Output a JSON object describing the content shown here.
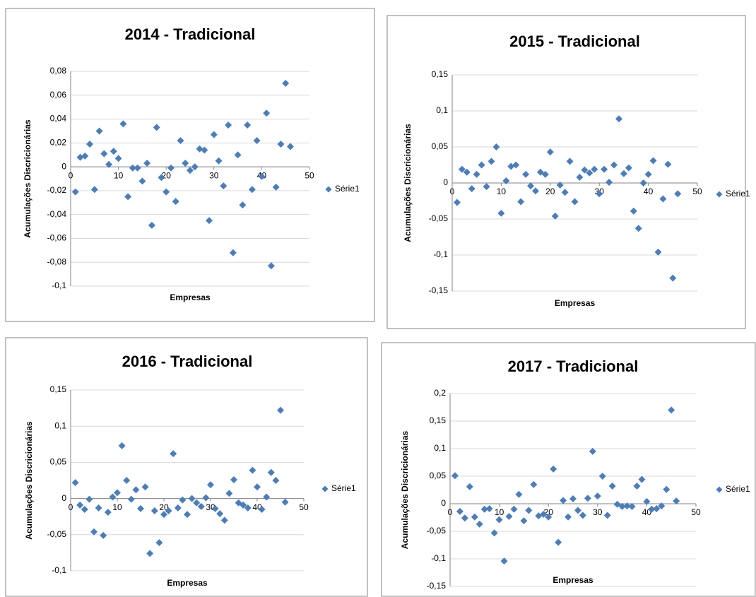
{
  "chart_data": [
    {
      "type": "scatter",
      "title": "2014 - Tradicional",
      "y_label": "Acumulações Discricionárias",
      "x_label": "Empresas",
      "xlim": [
        0,
        50
      ],
      "xticks": [
        0,
        10,
        20,
        30,
        40,
        50
      ],
      "ylim": [
        -0.1,
        0.08
      ],
      "yticks": [
        {
          "value": -0.1,
          "label": "-0,1"
        },
        {
          "value": -0.08,
          "label": "-0,08"
        },
        {
          "value": -0.06,
          "label": "-0,06"
        },
        {
          "value": -0.04,
          "label": "-0,04"
        },
        {
          "value": -0.02,
          "label": "-0,02"
        },
        0,
        {
          "value": 0.02,
          "label": "0,02"
        },
        {
          "value": 0.04,
          "label": "0,04"
        },
        {
          "value": 0.06,
          "label": "0,06"
        },
        {
          "value": 0.08,
          "label": "0,08"
        }
      ],
      "grid": true,
      "legend": "right",
      "series": [
        {
          "name": "Série1",
          "color": "#4a7ebb",
          "x": [
            1,
            2,
            3,
            4,
            5,
            6,
            7,
            8,
            9,
            10,
            11,
            12,
            13,
            14,
            15,
            16,
            17,
            18,
            19,
            20,
            21,
            22,
            23,
            24,
            25,
            26,
            27,
            28,
            29,
            30,
            31,
            32,
            33,
            34,
            35,
            36,
            37,
            38,
            39,
            40,
            41,
            42,
            43,
            44,
            45,
            46
          ],
          "values": [
            -0.021,
            0.008,
            0.009,
            0.019,
            -0.019,
            0.03,
            0.011,
            0.002,
            0.013,
            0.007,
            0.036,
            -0.025,
            -0.001,
            -0.001,
            -0.012,
            0.003,
            -0.049,
            0.033,
            -0.009,
            -0.021,
            -0.001,
            -0.029,
            0.022,
            0.003,
            -0.003,
            0.0,
            0.015,
            0.014,
            -0.045,
            0.027,
            0.005,
            -0.016,
            0.035,
            -0.072,
            0.01,
            -0.032,
            0.035,
            -0.019,
            0.022,
            -0.008,
            0.045,
            -0.083,
            -0.017,
            0.019,
            0.07,
            0.017
          ]
        }
      ]
    },
    {
      "type": "scatter",
      "title": "2015 - Tradicional",
      "y_label": "Acumulações Discricionárias",
      "x_label": "Empresas",
      "xlim": [
        0,
        50
      ],
      "xticks": [
        0,
        10,
        20,
        30,
        40,
        50
      ],
      "ylim": [
        -0.15,
        0.15
      ],
      "yticks": [
        {
          "value": -0.15,
          "label": "-0,15"
        },
        {
          "value": -0.1,
          "label": "-0,1"
        },
        {
          "value": -0.05,
          "label": "-0,05"
        },
        0,
        {
          "value": 0.05,
          "label": "0,05"
        },
        {
          "value": 0.1,
          "label": "0,1"
        },
        {
          "value": 0.15,
          "label": "0,15"
        }
      ],
      "grid": true,
      "legend": "right",
      "series": [
        {
          "name": "Série1",
          "color": "#4a7ebb",
          "x": [
            1,
            2,
            3,
            4,
            5,
            6,
            7,
            8,
            9,
            10,
            11,
            12,
            13,
            14,
            15,
            16,
            17,
            18,
            19,
            20,
            21,
            22,
            23,
            24,
            25,
            26,
            27,
            28,
            29,
            30,
            31,
            32,
            33,
            34,
            35,
            36,
            37,
            38,
            39,
            40,
            41,
            42,
            43,
            44,
            45,
            46
          ],
          "values": [
            -0.027,
            0.019,
            0.015,
            -0.008,
            0.012,
            0.025,
            -0.005,
            0.03,
            0.05,
            -0.042,
            0.003,
            0.023,
            0.025,
            -0.026,
            0.012,
            -0.004,
            -0.011,
            0.015,
            0.012,
            0.043,
            -0.046,
            -0.003,
            -0.013,
            0.03,
            -0.026,
            0.008,
            0.018,
            0.014,
            0.019,
            -0.015,
            0.019,
            0.001,
            0.025,
            0.089,
            0.013,
            0.021,
            -0.039,
            -0.063,
            0.0,
            0.012,
            0.031,
            -0.096,
            -0.022,
            0.026,
            -0.132,
            -0.015
          ]
        }
      ]
    },
    {
      "type": "scatter",
      "title": "2016 - Tradicional",
      "y_label": "Acumulações Discricionárias",
      "x_label": "Empresas",
      "xlim": [
        0,
        50
      ],
      "xticks": [
        0,
        10,
        20,
        30,
        40,
        50
      ],
      "ylim": [
        -0.1,
        0.15
      ],
      "yticks": [
        {
          "value": -0.1,
          "label": "-0,1"
        },
        {
          "value": -0.05,
          "label": "-0,05"
        },
        0,
        {
          "value": 0.05,
          "label": "0,05"
        },
        {
          "value": 0.1,
          "label": "0,1"
        },
        {
          "value": 0.15,
          "label": "0,15"
        }
      ],
      "grid": true,
      "legend": "right",
      "series": [
        {
          "name": "Série1",
          "color": "#4a7ebb",
          "x": [
            1,
            2,
            3,
            4,
            5,
            6,
            7,
            8,
            9,
            10,
            11,
            12,
            13,
            14,
            15,
            16,
            17,
            18,
            19,
            20,
            21,
            22,
            23,
            24,
            25,
            26,
            27,
            28,
            29,
            30,
            31,
            32,
            33,
            34,
            35,
            36,
            37,
            38,
            39,
            40,
            41,
            42,
            43,
            44,
            45,
            46
          ],
          "values": [
            0.022,
            -0.009,
            -0.015,
            -0.001,
            -0.046,
            -0.013,
            -0.051,
            -0.019,
            0.002,
            0.008,
            0.073,
            0.025,
            -0.001,
            0.012,
            -0.014,
            0.016,
            -0.076,
            -0.017,
            -0.061,
            -0.022,
            -0.017,
            0.062,
            -0.013,
            -0.002,
            -0.022,
            0.0,
            -0.006,
            -0.011,
            0.001,
            0.019,
            -0.014,
            -0.021,
            -0.03,
            0.007,
            0.026,
            -0.006,
            -0.009,
            -0.013,
            0.039,
            0.016,
            -0.015,
            0.002,
            0.036,
            0.025,
            0.122,
            -0.005
          ]
        }
      ]
    },
    {
      "type": "scatter",
      "title": "2017 - Tradicional",
      "y_label": "Acumulações Discricionárias",
      "x_label": "Empresas",
      "xlim": [
        0,
        50
      ],
      "xticks": [
        0,
        10,
        20,
        30,
        40,
        50
      ],
      "ylim": [
        -0.15,
        0.2
      ],
      "yticks": [
        {
          "value": -0.15,
          "label": "-0,15"
        },
        {
          "value": -0.1,
          "label": "-0,1"
        },
        {
          "value": -0.05,
          "label": "-0,05"
        },
        0,
        {
          "value": 0.05,
          "label": "0,05"
        },
        {
          "value": 0.1,
          "label": "0,1"
        },
        {
          "value": 0.15,
          "label": "0,15"
        },
        {
          "value": 0.2,
          "label": "0,2"
        }
      ],
      "grid": true,
      "legend": "right",
      "series": [
        {
          "name": "Série1",
          "color": "#4a7ebb",
          "x": [
            1,
            2,
            3,
            4,
            5,
            6,
            7,
            8,
            9,
            10,
            11,
            12,
            13,
            14,
            15,
            16,
            17,
            18,
            19,
            20,
            21,
            22,
            23,
            24,
            25,
            26,
            27,
            28,
            29,
            30,
            31,
            32,
            33,
            34,
            35,
            36,
            37,
            38,
            39,
            40,
            41,
            42,
            43,
            44,
            45,
            46
          ],
          "values": [
            0.051,
            -0.014,
            -0.026,
            0.031,
            -0.024,
            -0.037,
            -0.01,
            -0.009,
            -0.053,
            -0.029,
            -0.104,
            -0.023,
            -0.01,
            0.017,
            -0.031,
            -0.012,
            0.035,
            -0.022,
            -0.019,
            -0.024,
            0.063,
            -0.07,
            0.006,
            -0.024,
            0.009,
            -0.012,
            -0.021,
            0.01,
            0.095,
            0.014,
            0.05,
            -0.021,
            0.032,
            -0.001,
            -0.005,
            -0.004,
            -0.005,
            0.032,
            0.044,
            0.004,
            -0.01,
            -0.009,
            -0.004,
            0.026,
            0.17,
            0.005
          ]
        }
      ]
    }
  ]
}
